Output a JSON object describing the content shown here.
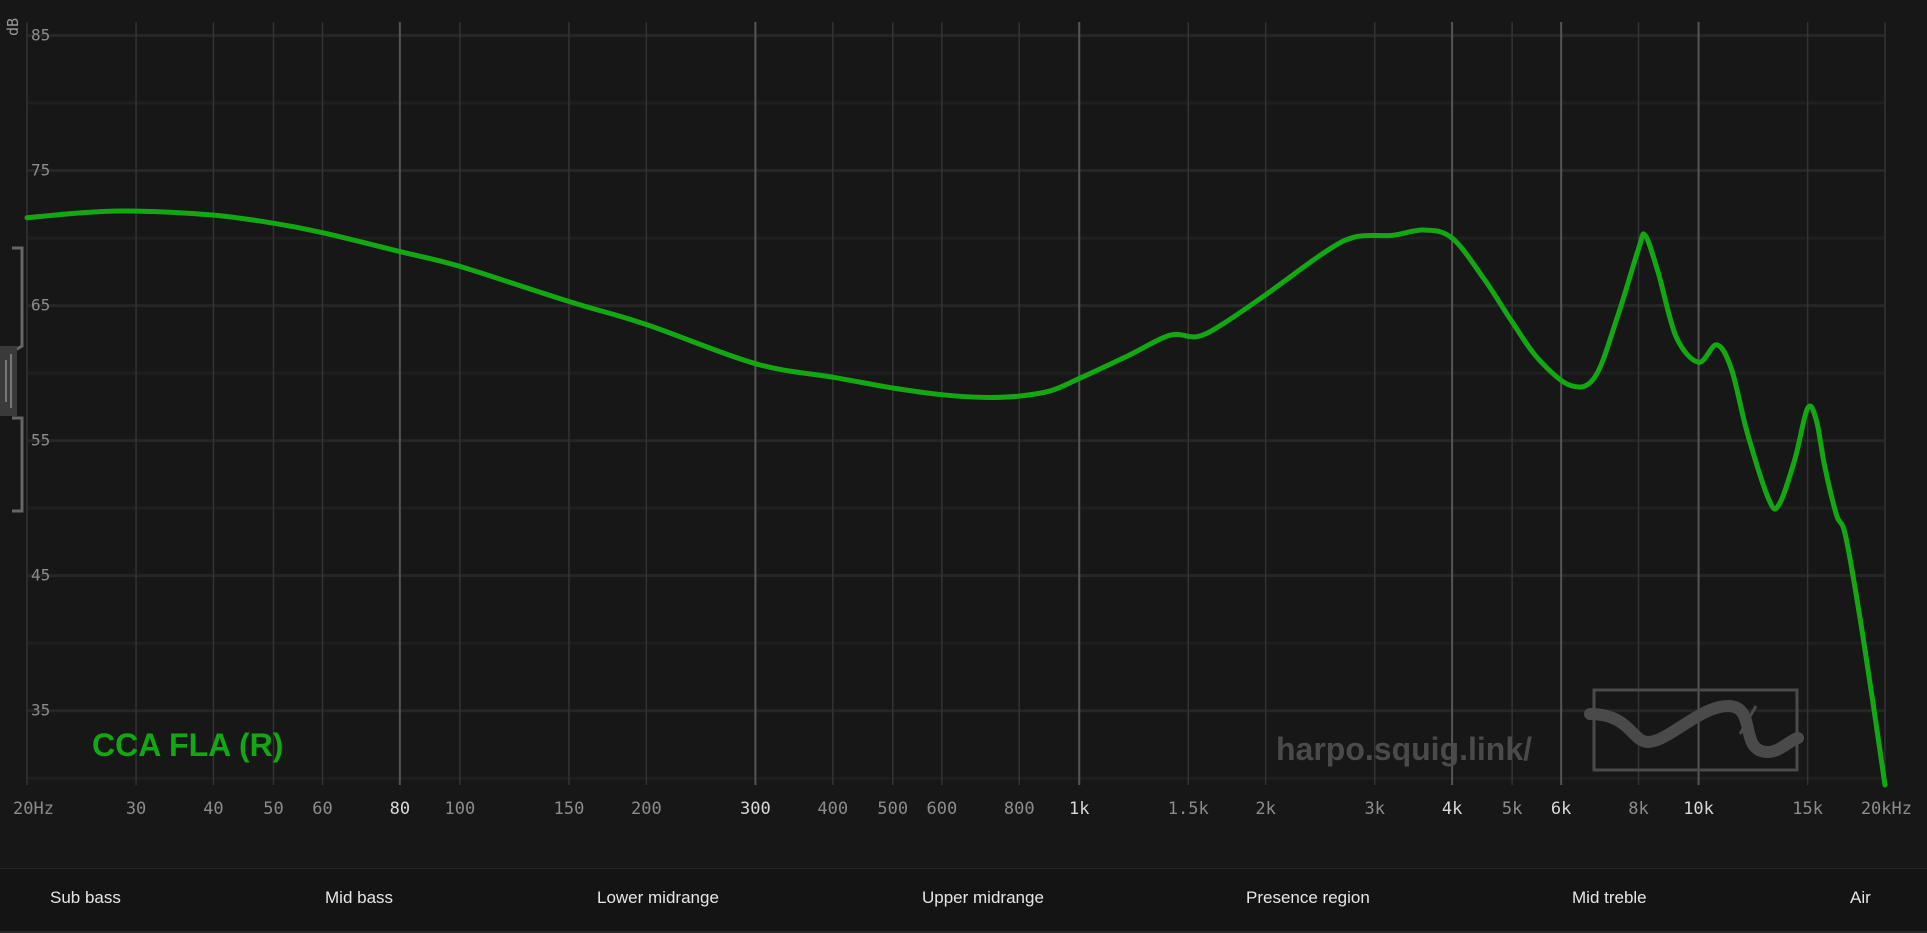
{
  "graph": {
    "db_unit": "dB",
    "watermark": "harpo.squig.link/",
    "label": "CCA FLA (R)",
    "series_color": "#13a812",
    "bands": [
      "Sub bass",
      "Mid bass",
      "Lower midrange",
      "Upper midrange",
      "Presence region",
      "Mid treble",
      "Air"
    ]
  },
  "chart_data": {
    "type": "line",
    "xscale": "log",
    "xlim": [
      20,
      20000
    ],
    "ylim": [
      29.5,
      86
    ],
    "y_ticks": [
      85,
      75,
      65,
      55,
      45,
      35
    ],
    "x_ticks": [
      {
        "f": 20,
        "label": "20Hz"
      },
      {
        "f": 30,
        "label": "30"
      },
      {
        "f": 40,
        "label": "40"
      },
      {
        "f": 50,
        "label": "50"
      },
      {
        "f": 60,
        "label": "60"
      },
      {
        "f": 80,
        "label": "80",
        "major": true
      },
      {
        "f": 100,
        "label": "100"
      },
      {
        "f": 150,
        "label": "150"
      },
      {
        "f": 200,
        "label": "200"
      },
      {
        "f": 300,
        "label": "300",
        "major": true
      },
      {
        "f": 400,
        "label": "400"
      },
      {
        "f": 500,
        "label": "500"
      },
      {
        "f": 600,
        "label": "600"
      },
      {
        "f": 800,
        "label": "800"
      },
      {
        "f": 1000,
        "label": "1k",
        "major": true
      },
      {
        "f": 1500,
        "label": "1.5k"
      },
      {
        "f": 2000,
        "label": "2k"
      },
      {
        "f": 3000,
        "label": "3k"
      },
      {
        "f": 4000,
        "label": "4k",
        "major": true
      },
      {
        "f": 5000,
        "label": "5k"
      },
      {
        "f": 6000,
        "label": "6k",
        "major": true
      },
      {
        "f": 8000,
        "label": "8k"
      },
      {
        "f": 10000,
        "label": "10k",
        "major": true
      },
      {
        "f": 15000,
        "label": "15k"
      },
      {
        "f": 20000,
        "label": "20kHz"
      }
    ],
    "series": [
      {
        "name": "CCA FLA (R)",
        "color": "#13a812",
        "points": [
          [
            20,
            71.5
          ],
          [
            25,
            71.9
          ],
          [
            30,
            72.0
          ],
          [
            40,
            71.7
          ],
          [
            50,
            71.1
          ],
          [
            60,
            70.4
          ],
          [
            80,
            69.0
          ],
          [
            100,
            67.9
          ],
          [
            150,
            65.3
          ],
          [
            200,
            63.6
          ],
          [
            300,
            60.7
          ],
          [
            400,
            59.7
          ],
          [
            500,
            58.9
          ],
          [
            600,
            58.4
          ],
          [
            700,
            58.2
          ],
          [
            800,
            58.3
          ],
          [
            900,
            58.7
          ],
          [
            1000,
            59.6
          ],
          [
            1200,
            61.3
          ],
          [
            1400,
            62.8
          ],
          [
            1550,
            62.7
          ],
          [
            1700,
            63.6
          ],
          [
            2000,
            65.8
          ],
          [
            2500,
            69.0
          ],
          [
            2800,
            70.1
          ],
          [
            3200,
            70.2
          ],
          [
            3600,
            70.6
          ],
          [
            4000,
            70.0
          ],
          [
            4500,
            67.0
          ],
          [
            5000,
            63.8
          ],
          [
            5500,
            61.1
          ],
          [
            6200,
            59.1
          ],
          [
            6800,
            59.7
          ],
          [
            7400,
            64.2
          ],
          [
            8000,
            69.2
          ],
          [
            8200,
            70.2
          ],
          [
            8600,
            67.5
          ],
          [
            9200,
            62.7
          ],
          [
            10000,
            60.8
          ],
          [
            10700,
            62.1
          ],
          [
            11300,
            60.3
          ],
          [
            12000,
            55.5
          ],
          [
            13000,
            50.6
          ],
          [
            13500,
            50.3
          ],
          [
            14300,
            53.6
          ],
          [
            15000,
            57.4
          ],
          [
            15500,
            56.5
          ],
          [
            16000,
            53.0
          ],
          [
            16700,
            49.5
          ],
          [
            17300,
            47.8
          ],
          [
            18500,
            40.0
          ],
          [
            20000,
            29.5
          ]
        ]
      }
    ]
  }
}
